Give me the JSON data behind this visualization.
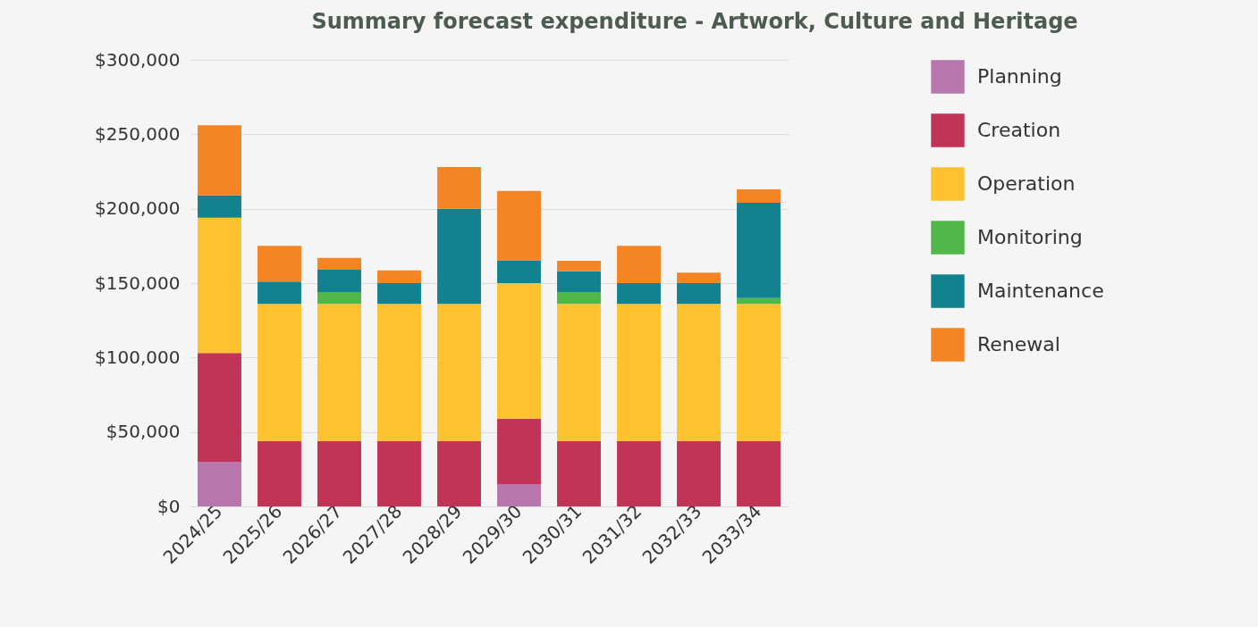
{
  "chart_data": {
    "type": "bar",
    "stacked": true,
    "title": "Summary forecast expenditure - Artwork, Culture and Heritage",
    "categories": [
      "2024/25",
      "2025/26",
      "2026/27",
      "2027/28",
      "2028/29",
      "2029/30",
      "2030/31",
      "2031/32",
      "2032/33",
      "2033/34"
    ],
    "series": [
      {
        "name": "Planning",
        "color": "#b877ac",
        "values": [
          30000,
          0,
          0,
          0,
          0,
          15000,
          0,
          0,
          0,
          0
        ]
      },
      {
        "name": "Creation",
        "color": "#c13455",
        "values": [
          73000,
          44000,
          44000,
          44000,
          44000,
          44000,
          44000,
          44000,
          44000,
          44000
        ]
      },
      {
        "name": "Operation",
        "color": "#fec230",
        "values": [
          91000,
          92000,
          92000,
          92000,
          92000,
          91000,
          92000,
          92000,
          92000,
          92000
        ]
      },
      {
        "name": "Monitoring",
        "color": "#4fb849",
        "values": [
          0,
          0,
          8000,
          0,
          0,
          0,
          8000,
          0,
          0,
          4000
        ]
      },
      {
        "name": "Maintenance",
        "color": "#138290",
        "values": [
          15000,
          15000,
          15000,
          14000,
          64000,
          15000,
          14000,
          14000,
          14000,
          64000
        ]
      },
      {
        "name": "Renewal",
        "color": "#f48424",
        "values": [
          47000,
          24000,
          8000,
          8500,
          28000,
          47000,
          7000,
          25000,
          7000,
          9000
        ]
      }
    ],
    "ylim": [
      0,
      300000
    ],
    "yticks": [
      {
        "value": 0,
        "label": "$0"
      },
      {
        "value": 50000,
        "label": "$50,000"
      },
      {
        "value": 100000,
        "label": "$100,000"
      },
      {
        "value": 150000,
        "label": "$150,000"
      },
      {
        "value": 200000,
        "label": "$200,000"
      },
      {
        "value": 250000,
        "label": "$250,000"
      },
      {
        "value": 300000,
        "label": "$300,000"
      }
    ],
    "grid": "y",
    "legend": "right"
  }
}
